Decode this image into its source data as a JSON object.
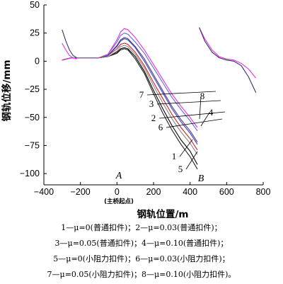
{
  "chart_data": {
    "type": "line",
    "xlabel": "钢轨位置/m",
    "ylabel": "钢轨位移/mm",
    "xlim": [
      -400,
      800
    ],
    "ylim": [
      -110,
      50
    ],
    "x_ticks": [
      "−400",
      "−200",
      "0",
      "200",
      "400",
      "600",
      "800"
    ],
    "y_ticks": [
      "50",
      "25",
      "0",
      "−25",
      "−50",
      "−75",
      "−100"
    ],
    "x_tick_values": [
      -400,
      -200,
      0,
      200,
      400,
      600,
      800
    ],
    "y_tick_values": [
      50,
      25,
      0,
      -25,
      -50,
      -75,
      -100
    ],
    "grid": false,
    "annotations": {
      "point_a": "A",
      "point_b": "B",
      "bridge_start": "(主桥起点)"
    },
    "series": [
      {
        "name": "1",
        "color": "#000000",
        "x": [
          -300,
          -250,
          -200,
          -150,
          -100,
          -50,
          0,
          20,
          40,
          60,
          100,
          150,
          200,
          250,
          300,
          350,
          400,
          440
        ],
        "y": [
          1,
          3,
          3,
          3,
          3,
          4,
          8,
          11,
          12,
          11,
          4,
          -9,
          -26,
          -42,
          -57,
          -70,
          -80,
          -92
        ]
      },
      {
        "name": "2",
        "color": "#cc2222",
        "x": [
          -300,
          -250,
          -200,
          -150,
          -100,
          -50,
          0,
          20,
          40,
          60,
          100,
          150,
          200,
          250,
          300,
          350,
          400,
          440
        ],
        "y": [
          1,
          3,
          3,
          3,
          3,
          5,
          11,
          15,
          16,
          15,
          8,
          -4,
          -19,
          -33,
          -47,
          -59,
          -69,
          -79
        ]
      },
      {
        "name": "3",
        "color": "#5a3a8a",
        "x": [
          -300,
          -250,
          -200,
          -150,
          -100,
          -50,
          0,
          20,
          40,
          60,
          100,
          150,
          200,
          250,
          300,
          350,
          400,
          440
        ],
        "y": [
          1,
          3,
          3,
          3,
          3,
          5,
          14,
          19,
          21,
          20,
          13,
          2,
          -12,
          -26,
          -40,
          -52,
          -62,
          -72
        ]
      },
      {
        "name": "4",
        "color": "#6666dd",
        "x": [
          -300,
          -250,
          -200,
          -150,
          -100,
          -50,
          0,
          20,
          40,
          60,
          100,
          150,
          200,
          250,
          300,
          350,
          400,
          440
        ],
        "y": [
          1,
          3,
          3,
          3,
          3,
          6,
          17,
          23,
          25,
          24,
          17,
          7,
          -6,
          -19,
          -32,
          -43,
          -53,
          -62
        ]
      },
      {
        "name": "5",
        "color": "#222222",
        "x": [
          -300,
          -250,
          -200,
          -150,
          -100,
          -50,
          0,
          20,
          40,
          60,
          100,
          150,
          200,
          250,
          300,
          350,
          400,
          440
        ],
        "y": [
          1,
          3,
          3,
          3,
          3,
          4,
          7,
          10,
          11,
          10,
          2,
          -11,
          -29,
          -46,
          -61,
          -74,
          -85,
          -96
        ]
      },
      {
        "name": "6",
        "color": "#888888",
        "x": [
          -300,
          -250,
          -200,
          -150,
          -100,
          -50,
          0,
          20,
          40,
          60,
          100,
          150,
          200,
          250,
          300,
          350,
          400,
          440
        ],
        "y": [
          1,
          3,
          3,
          3,
          3,
          4,
          9,
          13,
          14,
          13,
          6,
          -6,
          -22,
          -37,
          -51,
          -63,
          -73,
          -83
        ]
      },
      {
        "name": "7",
        "color": "#3344aa",
        "x": [
          -300,
          -250,
          -200,
          -150,
          -100,
          -50,
          0,
          20,
          40,
          60,
          100,
          150,
          200,
          250,
          300,
          350,
          400,
          440
        ],
        "y": [
          1,
          3,
          3,
          3,
          3,
          5,
          13,
          18,
          20,
          19,
          12,
          0,
          -14,
          -28,
          -42,
          -54,
          -64,
          -74
        ]
      },
      {
        "name": "8",
        "color": "#dd33dd",
        "x": [
          -300,
          -250,
          -200,
          -150,
          -100,
          -50,
          0,
          20,
          40,
          60,
          100,
          150,
          200,
          250,
          300,
          350,
          400,
          440
        ],
        "y": [
          1,
          3,
          3,
          3,
          3,
          6,
          19,
          26,
          29,
          28,
          21,
          10,
          -3,
          -16,
          -29,
          -40,
          -50,
          -59
        ]
      }
    ],
    "right_segment": {
      "x": [
        450,
        480,
        520,
        560,
        600,
        640,
        680,
        720,
        760
      ],
      "magenta_y": [
        30,
        20,
        10,
        4,
        2,
        1,
        -2,
        -7,
        -15
      ],
      "dark_y": [
        30,
        18,
        8,
        3,
        1,
        0,
        -4,
        -14,
        -28
      ]
    },
    "left_stub": {
      "x": [
        -300,
        -280,
        -260,
        -240,
        -220
      ],
      "magenta_y": [
        16,
        10,
        5,
        3,
        2
      ],
      "dark_y": [
        28,
        18,
        10,
        5,
        3
      ]
    }
  },
  "legend_lines": [
    "1—μ=0(普通扣件)；2—μ=0.03(普通扣件)；",
    "3—μ=0.05(普通扣件)；4—μ=0.10(普通扣件)；",
    "5—μ=0(小阻力扣件)；6—μ=0.03(小阻力扣件)；",
    "7—μ=0.05(小阻力扣件)；8—μ=0.10(小阻力扣件)。"
  ]
}
